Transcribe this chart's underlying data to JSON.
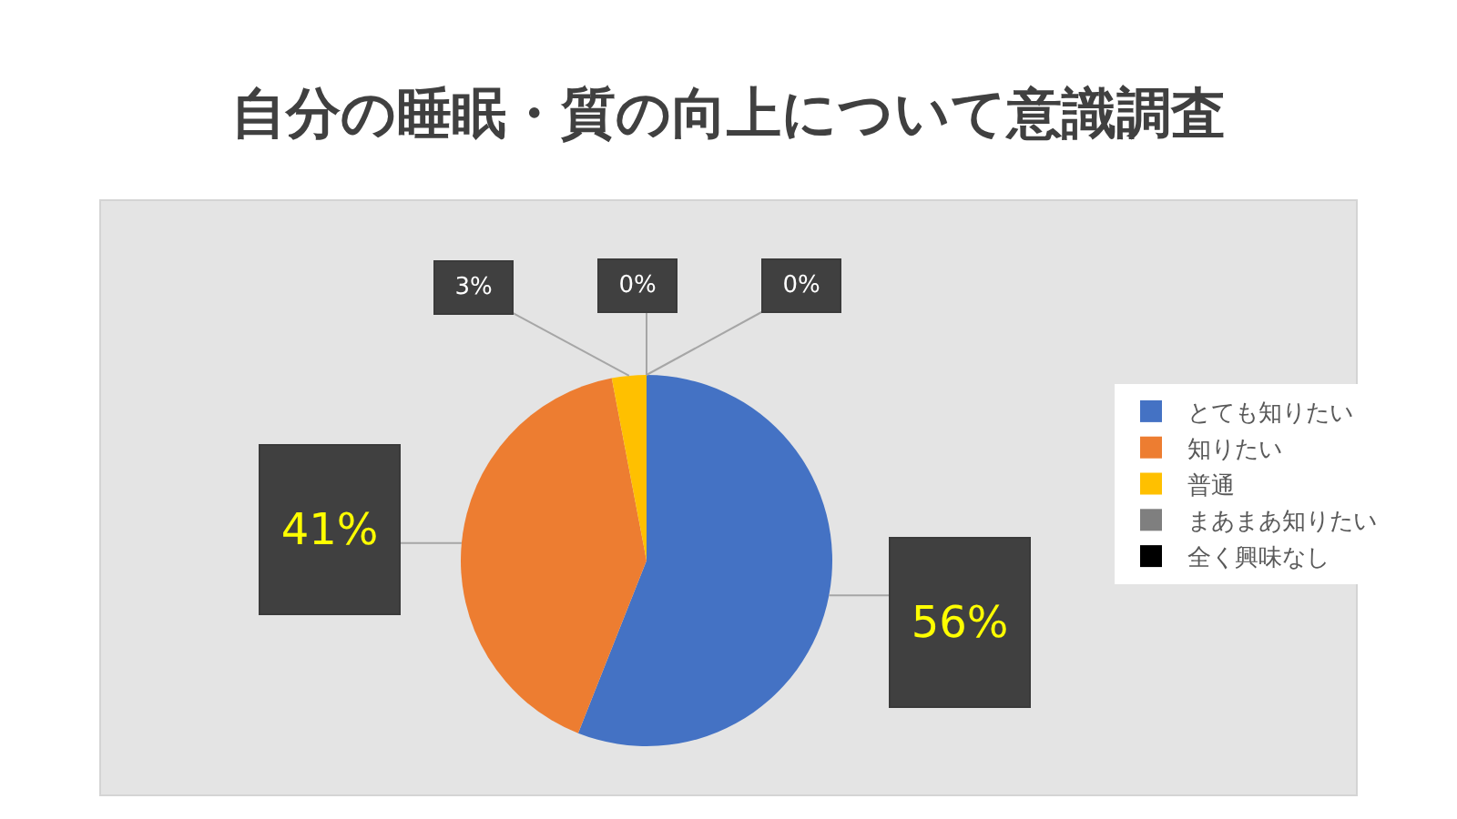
{
  "chart_data": {
    "type": "pie",
    "title": "自分の睡眠・質の向上について意識調査",
    "categories": [
      "とても知りたい",
      "知りたい",
      "普通",
      "まあまあ知りたい",
      "全く興味なし"
    ],
    "values": [
      56,
      41,
      3,
      0,
      0
    ],
    "colors": [
      "#4472c4",
      "#ed7d31",
      "#ffc000",
      "#7f7f7f",
      "#000000"
    ],
    "value_labels": [
      "56%",
      "41%",
      "3%",
      "0%",
      "0%"
    ],
    "legend": "right"
  }
}
